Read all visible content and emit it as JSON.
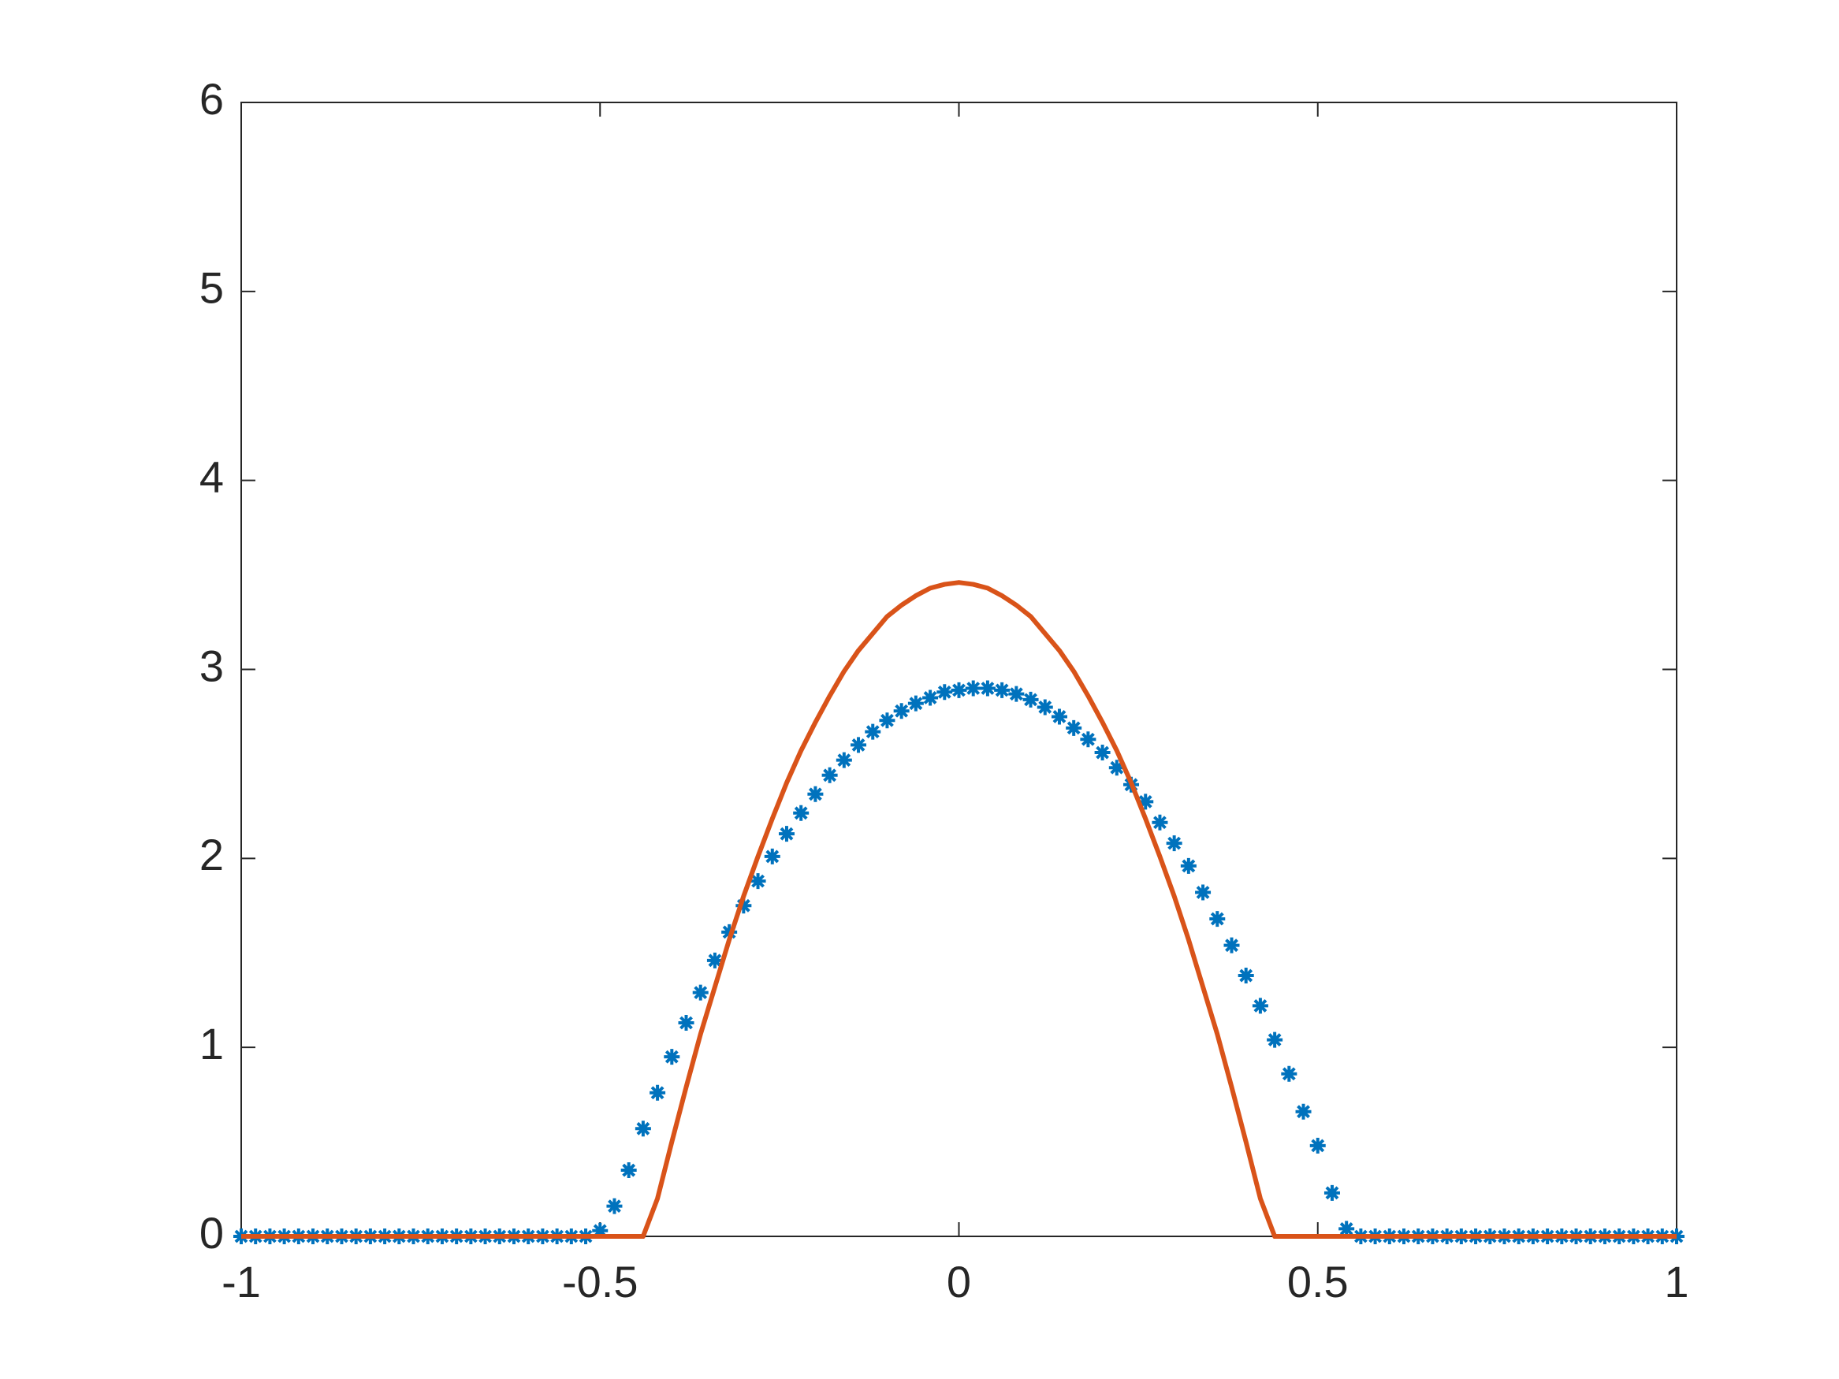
{
  "chart_data": {
    "type": "line",
    "x": [
      -1,
      -0.98,
      -0.96,
      -0.94,
      -0.92,
      -0.9,
      -0.88,
      -0.86,
      -0.84,
      -0.82,
      -0.8,
      -0.78,
      -0.76,
      -0.74,
      -0.72,
      -0.7,
      -0.68,
      -0.66,
      -0.64,
      -0.62,
      -0.6,
      -0.58,
      -0.56,
      -0.54,
      -0.52,
      -0.5,
      -0.48,
      -0.46,
      -0.44,
      -0.42,
      -0.4,
      -0.38,
      -0.36,
      -0.34,
      -0.32,
      -0.3,
      -0.28,
      -0.26,
      -0.24,
      -0.22,
      -0.2,
      -0.18,
      -0.16,
      -0.14,
      -0.12,
      -0.1,
      -0.08,
      -0.06,
      -0.04,
      -0.02,
      0,
      0.02,
      0.04,
      0.06,
      0.08,
      0.1,
      0.12,
      0.14,
      0.16,
      0.18,
      0.2,
      0.22,
      0.24,
      0.26,
      0.28,
      0.3,
      0.32,
      0.34,
      0.36,
      0.38,
      0.4,
      0.42,
      0.44,
      0.46,
      0.48,
      0.5,
      0.52,
      0.54,
      0.56,
      0.58,
      0.6,
      0.62,
      0.64,
      0.66,
      0.68,
      0.7,
      0.72,
      0.74,
      0.76,
      0.78,
      0.8,
      0.82,
      0.84,
      0.86,
      0.88,
      0.9,
      0.92,
      0.94,
      0.96,
      0.98,
      1
    ],
    "series": [
      {
        "color": "#0072BD",
        "marker": "asterisk",
        "values": [
          0,
          0,
          0,
          0,
          0,
          0,
          0,
          0,
          0,
          0,
          0,
          0,
          0,
          0,
          0,
          0,
          0,
          0,
          0,
          0,
          0,
          0,
          0,
          0,
          0,
          0.03,
          0.16,
          0.35,
          0.57,
          0.76,
          0.95,
          1.13,
          1.29,
          1.46,
          1.61,
          1.75,
          1.88,
          2.01,
          2.13,
          2.24,
          2.34,
          2.44,
          2.52,
          2.6,
          2.67,
          2.73,
          2.78,
          2.82,
          2.85,
          2.88,
          2.89,
          2.9,
          2.9,
          2.89,
          2.87,
          2.84,
          2.8,
          2.75,
          2.69,
          2.63,
          2.56,
          2.48,
          2.39,
          2.3,
          2.19,
          2.08,
          1.96,
          1.82,
          1.68,
          1.54,
          1.38,
          1.22,
          1.04,
          0.86,
          0.66,
          0.48,
          0.23,
          0.04,
          0,
          0,
          0,
          0,
          0,
          0,
          0,
          0,
          0,
          0,
          0,
          0,
          0,
          0,
          0,
          0,
          0,
          0,
          0,
          0,
          0,
          0,
          0
        ]
      },
      {
        "color": "#D95319",
        "marker": "none",
        "values": [
          0,
          0,
          0,
          0,
          0,
          0,
          0,
          0,
          0,
          0,
          0,
          0,
          0,
          0,
          0,
          0,
          0,
          0,
          0,
          0,
          0,
          0,
          0,
          0,
          0,
          0,
          0,
          0,
          0,
          0.2,
          0.5,
          0.79,
          1.07,
          1.32,
          1.57,
          1.8,
          2.01,
          2.21,
          2.4,
          2.57,
          2.72,
          2.86,
          2.99,
          3.1,
          3.19,
          3.28,
          3.34,
          3.39,
          3.43,
          3.45,
          3.46,
          3.45,
          3.43,
          3.39,
          3.34,
          3.28,
          3.19,
          3.1,
          2.99,
          2.86,
          2.72,
          2.57,
          2.4,
          2.21,
          2.01,
          1.8,
          1.57,
          1.32,
          1.07,
          0.79,
          0.5,
          0.2,
          0,
          0,
          0,
          0,
          0,
          0,
          0,
          0,
          0,
          0,
          0,
          0,
          0,
          0,
          0,
          0,
          0,
          0,
          0,
          0,
          0,
          0,
          0,
          0,
          0,
          0,
          0,
          0,
          0
        ]
      }
    ],
    "xlim": [
      -1,
      1
    ],
    "xticks": [
      -1,
      -0.5,
      0,
      0.5,
      1
    ],
    "ylim": [
      0,
      6
    ],
    "yticks": [
      0,
      1,
      2,
      3,
      4,
      5,
      6
    ],
    "grid": false
  }
}
